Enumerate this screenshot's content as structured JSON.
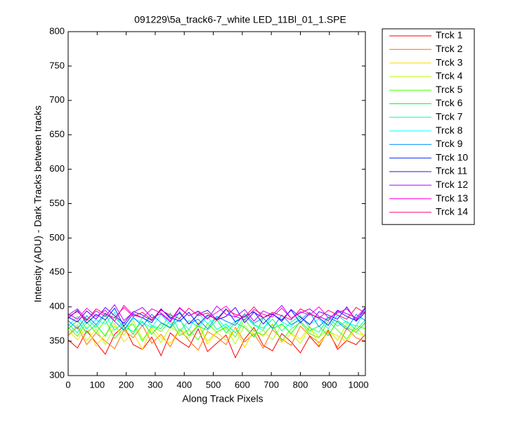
{
  "chart_data": {
    "type": "line",
    "title": "091229\\5a_track6-7_white LED_11Bl_01_1.SPE",
    "x_label": "Along Track Pixels",
    "y_label": "Intensity (ADU) - Dark Tracks between tracks",
    "xlim": [
      0,
      1024
    ],
    "xticks": [
      0,
      100,
      200,
      300,
      400,
      500,
      600,
      700,
      800,
      900,
      1000
    ],
    "ylim": [
      300,
      800
    ],
    "yticks": [
      300,
      350,
      400,
      450,
      500,
      550,
      600,
      650,
      700,
      750,
      800
    ],
    "grid": false,
    "legend": "outside-right",
    "x": [
      0,
      32,
      64,
      96,
      128,
      160,
      192,
      224,
      256,
      288,
      320,
      352,
      384,
      416,
      448,
      480,
      512,
      544,
      576,
      608,
      640,
      672,
      704,
      736,
      768,
      800,
      832,
      864,
      896,
      928,
      960,
      992,
      1024
    ],
    "series": [
      {
        "name": "Trck 1",
        "color": "#ff0000",
        "values": [
          352,
          340,
          365,
          348,
          331,
          360,
          372,
          345,
          338,
          356,
          329,
          362,
          350,
          341,
          368,
          335,
          347,
          359,
          326,
          353,
          370,
          344,
          336,
          361,
          349,
          333,
          357,
          342,
          366,
          338,
          351,
          345,
          360
        ]
      },
      {
        "name": "Trck 2",
        "color": "#ff6d00",
        "values": [
          358,
          371,
          345,
          362,
          350,
          339,
          366,
          355,
          373,
          347,
          360,
          342,
          368,
          351,
          337,
          364,
          356,
          345,
          370,
          349,
          361,
          340,
          367,
          353,
          344,
          372,
          358,
          348,
          363,
          341,
          369,
          355,
          350
        ]
      },
      {
        "name": "Trck 3",
        "color": "#ffdb00",
        "values": [
          365,
          352,
          371,
          343,
          360,
          376,
          349,
          362,
          338,
          370,
          355,
          347,
          368,
          359,
          374,
          346,
          363,
          351,
          369,
          341,
          366,
          357,
          375,
          348,
          361,
          353,
          372,
          344,
          364,
          358,
          349,
          370,
          356
        ]
      },
      {
        "name": "Trck 4",
        "color": "#b6ff00",
        "values": [
          360,
          374,
          351,
          368,
          345,
          372,
          359,
          380,
          353,
          366,
          348,
          371,
          362,
          355,
          377,
          350,
          364,
          369,
          346,
          373,
          358,
          366,
          352,
          375,
          361,
          347,
          370,
          356,
          367,
          351,
          376,
          362,
          358
        ]
      },
      {
        "name": "Trck 5",
        "color": "#49ff00",
        "values": [
          370,
          357,
          378,
          362,
          381,
          354,
          369,
          375,
          350,
          372,
          364,
          380,
          358,
          367,
          352,
          376,
          363,
          371,
          356,
          382,
          365,
          359,
          374,
          350,
          368,
          377,
          361,
          355,
          379,
          366,
          353,
          373,
          368
        ]
      },
      {
        "name": "Trck 6",
        "color": "#00ff24",
        "values": [
          368,
          380,
          362,
          374,
          357,
          385,
          371,
          364,
          379,
          360,
          376,
          369,
          383,
          358,
          372,
          366,
          381,
          362,
          377,
          370,
          356,
          384,
          368,
          375,
          361,
          379,
          365,
          372,
          358,
          380,
          370,
          363,
          377
        ]
      },
      {
        "name": "Trck 7",
        "color": "#00ff92",
        "values": [
          375,
          362,
          383,
          370,
          389,
          366,
          378,
          360,
          385,
          373,
          368,
          391,
          364,
          380,
          371,
          386,
          367,
          375,
          362,
          388,
          374,
          369,
          382,
          365,
          378,
          387,
          370,
          363,
          384,
          372,
          379,
          366,
          381
        ]
      },
      {
        "name": "Trck 8",
        "color": "#00ffff",
        "values": [
          372,
          386,
          368,
          381,
          375,
          392,
          366,
          383,
          377,
          370,
          389,
          374,
          380,
          367,
          391,
          376,
          384,
          369,
          379,
          387,
          373,
          366,
          390,
          378,
          371,
          385,
          375,
          382,
          368,
          388,
          377,
          372,
          395
        ]
      },
      {
        "name": "Trck 9",
        "color": "#0092ff",
        "values": [
          380,
          368,
          387,
          374,
          391,
          379,
          366,
          385,
          372,
          389,
          377,
          370,
          393,
          375,
          382,
          368,
          386,
          379,
          373,
          390,
          376,
          384,
          369,
          388,
          374,
          381,
          392,
          371,
          385,
          378,
          367,
          389,
          380
        ]
      },
      {
        "name": "Trck 10",
        "color": "#0024ff",
        "values": [
          383,
          395,
          376,
          389,
          381,
          398,
          372,
          390,
          384,
          377,
          396,
          385,
          379,
          392,
          374,
          388,
          382,
          397,
          378,
          386,
          393,
          375,
          389,
          381,
          395,
          377,
          390,
          384,
          373,
          394,
          386,
          380,
          398
        ]
      },
      {
        "name": "Trck 11",
        "color": "#4900ff",
        "values": [
          385,
          378,
          394,
          382,
          399,
          387,
          376,
          393,
          388,
          380,
          397,
          383,
          391,
          375,
          389,
          395,
          381,
          386,
          399,
          377,
          392,
          384,
          390,
          379,
          396,
          385,
          374,
          393,
          388,
          382,
          400,
          379,
          392
        ]
      },
      {
        "name": "Trck 12",
        "color": "#b600ff",
        "values": [
          388,
          397,
          381,
          394,
          386,
          403,
          380,
          392,
          399,
          384,
          390,
          378,
          398,
          387,
          393,
          382,
          401,
          389,
          385,
          396,
          379,
          394,
          388,
          402,
          383,
          391,
          397,
          386,
          380,
          395,
          390,
          384,
          399
        ]
      },
      {
        "name": "Trck 13",
        "color": "#ff00db",
        "values": [
          390,
          382,
          398,
          386,
          395,
          379,
          402,
          388,
          384,
          397,
          391,
          380,
          399,
          387,
          394,
          383,
          392,
          401,
          386,
          381,
          396,
          389,
          385,
          398,
          383,
          393,
          388,
          400,
          384,
          391,
          397,
          382,
          394
        ]
      },
      {
        "name": "Trck 14",
        "color": "#ff006d",
        "values": [
          386,
          393,
          380,
          397,
          389,
          384,
          399,
          386,
          392,
          381,
          395,
          388,
          383,
          398,
          387,
          391,
          380,
          396,
          389,
          385,
          400,
          384,
          392,
          387,
          381,
          397,
          390,
          383,
          395,
          388,
          382,
          399,
          391
        ]
      }
    ]
  }
}
